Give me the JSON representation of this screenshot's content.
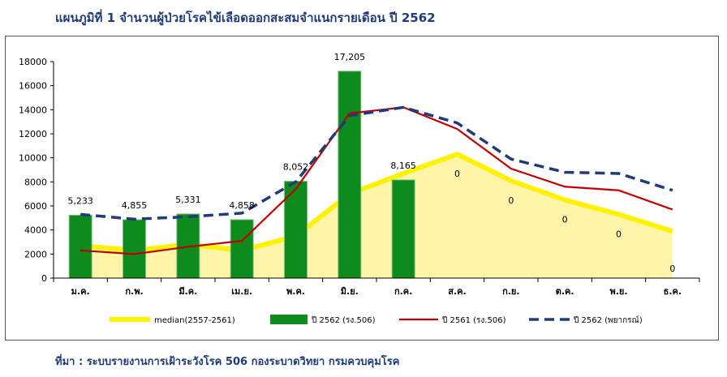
{
  "title": "แผนภูมิที่ 1 จำนวนผู้ป่วยโรคไข้เลือดออกสะสมจำแนกรายเดือน ปี 2562",
  "source": "ที่มา : ระบบรายงานการเฝ้าระวังโรค 506 กองระบาดวิทยา กรมควบคุมโรค",
  "colors": {
    "median": "#fff200",
    "median_fill": "#fff5a8",
    "bar": "#0f8a1e",
    "line_2561": "#c00000",
    "line_forecast": "#1f3b7a"
  },
  "chart_data": {
    "type": "bar",
    "title": "",
    "xlabel": "",
    "ylabel": "",
    "ylim": [
      0,
      18000
    ],
    "yticks": [
      "0",
      "2000",
      "4000",
      "6000",
      "8000",
      "10000",
      "12000",
      "14000",
      "16000",
      "18000"
    ],
    "categories": [
      "ม.ค.",
      "ก.พ.",
      "มี.ค.",
      "เม.ย.",
      "พ.ค.",
      "มิ.ย.",
      "ก.ค.",
      "ส.ค.",
      "ก.ย.",
      "ต.ค.",
      "พ.ย.",
      "ธ.ค."
    ],
    "legend_position": "bottom",
    "series": [
      {
        "name": "median(2557-2561)",
        "kind": "area",
        "values": [
          2700,
          2300,
          2800,
          2300,
          3500,
          7000,
          8700,
          10300,
          8100,
          6500,
          5300,
          3900
        ]
      },
      {
        "name": "ปี 2562 (รง.506)",
        "kind": "bar",
        "values": [
          5233,
          4855,
          5331,
          4858,
          8052,
          17205,
          8165,
          0,
          0,
          0,
          0,
          0
        ],
        "labels": [
          "5,233",
          "4,855",
          "5,331",
          "4,858",
          "8,052",
          "17,205",
          "8,165",
          "0",
          "0",
          "0",
          "0",
          "0"
        ]
      },
      {
        "name": "ปี 2561 (รง.506)",
        "kind": "line",
        "values": [
          2300,
          2000,
          2600,
          3100,
          7400,
          13700,
          14200,
          12400,
          9100,
          7600,
          7300,
          5700
        ]
      },
      {
        "name": "ปี 2562 (พยากรณ์)",
        "kind": "dashed",
        "values": [
          5300,
          4900,
          5100,
          5400,
          8000,
          13500,
          14200,
          12900,
          9900,
          8800,
          8700,
          7300
        ]
      }
    ]
  }
}
